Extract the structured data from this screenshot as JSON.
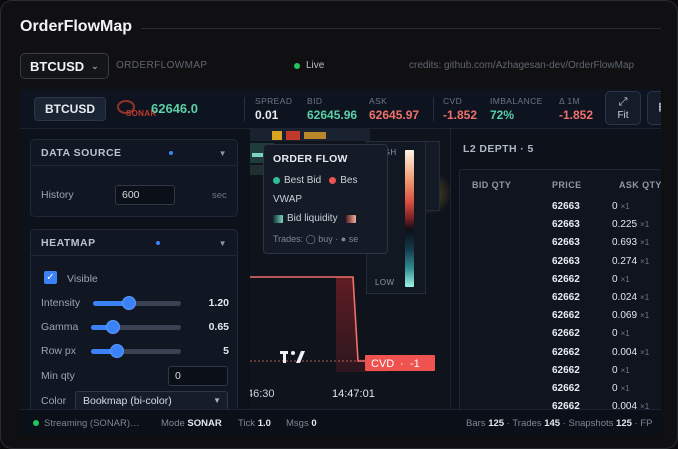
{
  "app": {
    "title": "OrderFlowMap",
    "symbol_select": "BTCUSD",
    "subtitle": "ORDERFLOWMAP",
    "live_label": "Live",
    "credits": "credits: github.com/Azhagesan-dev/OrderFlowMap"
  },
  "header": {
    "symbol": "BTCUSD",
    "logo_text": "SONAR",
    "last_price": "62646.0",
    "stats": [
      {
        "key": "SPREAD",
        "value": "0.01",
        "color": "#e8ecf2"
      },
      {
        "key": "BID",
        "value": "62645.96",
        "color": "#59d0a6"
      },
      {
        "key": "ASK",
        "value": "62645.97",
        "color": "#f0706a"
      },
      {
        "key": "CVD",
        "value": "-1.852",
        "color": "#f0706a"
      },
      {
        "key": "IMBALANCE",
        "value": "72%",
        "color": "#59d0a6"
      },
      {
        "key": "Δ 1M",
        "value": "-1.852",
        "color": "#f0706a"
      }
    ],
    "fit_label": "Fit"
  },
  "sidebar": {
    "data_source": {
      "title": "DATA SOURCE",
      "history_label": "History",
      "history_value": "600",
      "history_unit": "sec"
    },
    "heatmap": {
      "title": "HEATMAP",
      "visible_label": "Visible",
      "visible": true,
      "intensity_label": "Intensity",
      "intensity_value": "1.20",
      "intensity_fraction": 0.39,
      "gamma_label": "Gamma",
      "gamma_value": "0.65",
      "gamma_fraction": 0.2,
      "rowpx_label": "Row px",
      "rowpx_value": "5",
      "rowpx_fraction": 0.25,
      "minqty_label": "Min qty",
      "minqty_value": "0",
      "color_label": "Color",
      "color_value": "Bookmap (bi-color)"
    }
  },
  "chart": {
    "time_ticks": [
      "46:30",
      "14:47:01"
    ],
    "cvd_tag": "CVD",
    "cvd_value": "-1"
  },
  "legend": {
    "title": "ORDER FLOW",
    "best_bid": "Best Bid",
    "best_ask": "Bes",
    "vwap": "VWAP",
    "bid_liquidity": "Bid liquidity",
    "trades_line": "Trades: ◯ buy · ● se"
  },
  "color_scale": {
    "high": "HIGH",
    "low": "LOW"
  },
  "depth": {
    "title": "L2 DEPTH · 5",
    "headers": {
      "bid": "BID QTY",
      "price": "PRICE",
      "ask": "ASK QTY"
    },
    "rows": [
      {
        "price": "62663",
        "ask": "0",
        "mult": "×1"
      },
      {
        "price": "62663",
        "ask": "0.225",
        "mult": "×1"
      },
      {
        "price": "62663",
        "ask": "0.693",
        "mult": "×1"
      },
      {
        "price": "62663",
        "ask": "0.274",
        "mult": "×1"
      },
      {
        "price": "62662",
        "ask": "0",
        "mult": "×1"
      },
      {
        "price": "62662",
        "ask": "0.024",
        "mult": "×1"
      },
      {
        "price": "62662",
        "ask": "0.069",
        "mult": "×1"
      },
      {
        "price": "62662",
        "ask": "0",
        "mult": "×1"
      },
      {
        "price": "62662",
        "ask": "0.004",
        "mult": "×1"
      },
      {
        "price": "62662",
        "ask": "0",
        "mult": "×1"
      },
      {
        "price": "62662",
        "ask": "0",
        "mult": "×1"
      },
      {
        "price": "62662",
        "ask": "0.004",
        "mult": "×1"
      }
    ]
  },
  "status": {
    "streaming": "Streaming (SONAR)…",
    "mode_label": "Mode",
    "mode_value": "SONAR",
    "tick_label": "Tick",
    "tick_value": "1.0",
    "msgs_label": "Msgs",
    "msgs_value": "0",
    "bars_label": "Bars",
    "bars_value": "125",
    "trades_label": "Trades",
    "trades_value": "145",
    "snapshots_label": "Snapshots",
    "snapshots_value": "125",
    "fps_label": "FP"
  },
  "colors": {
    "accent": "#3b82f6",
    "bid": "#59d0a6",
    "ask": "#f0706a",
    "live": "#22c55e"
  }
}
